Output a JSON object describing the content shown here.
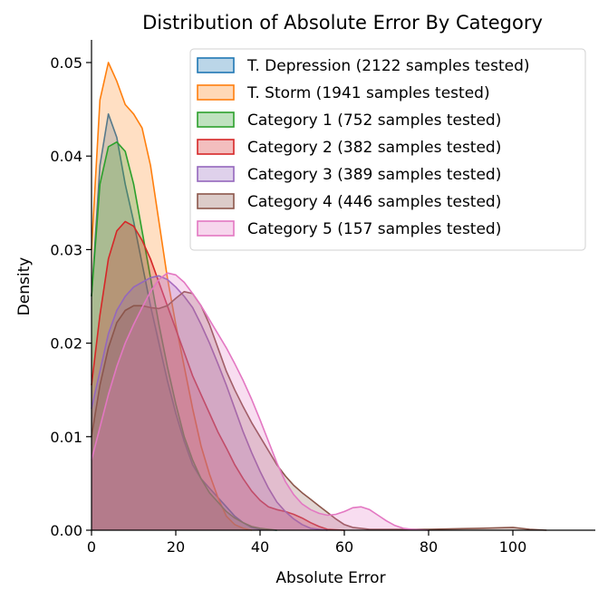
{
  "chart_data": {
    "type": "area",
    "title": "Distribution of Absolute Error By Category",
    "xlabel": "Absolute Error",
    "ylabel": "Density",
    "xlim": [
      0,
      120
    ],
    "ylim": [
      0,
      0.0525
    ],
    "xticks": [
      0,
      20,
      40,
      60,
      80,
      100
    ],
    "yticks": [
      0.0,
      0.01,
      0.02,
      0.03,
      0.04,
      0.05
    ],
    "xtick_labels": [
      "0",
      "20",
      "40",
      "60",
      "80",
      "100"
    ],
    "ytick_labels": [
      "0.00",
      "0.01",
      "0.02",
      "0.03",
      "0.04",
      "0.05"
    ],
    "legend_position": "top-right",
    "grid": false,
    "series": [
      {
        "name": "T. Depression (2122 samples tested)",
        "color": "#1f77b4",
        "points": [
          [
            0,
            0.025
          ],
          [
            2,
            0.039
          ],
          [
            4,
            0.0445
          ],
          [
            6,
            0.042
          ],
          [
            8,
            0.037
          ],
          [
            10,
            0.033
          ],
          [
            12,
            0.0285
          ],
          [
            14,
            0.024
          ],
          [
            16,
            0.02
          ],
          [
            18,
            0.016
          ],
          [
            20,
            0.0125
          ],
          [
            22,
            0.0095
          ],
          [
            24,
            0.007
          ],
          [
            26,
            0.0055
          ],
          [
            28,
            0.0045
          ],
          [
            30,
            0.0035
          ],
          [
            32,
            0.0025
          ],
          [
            34,
            0.0015
          ],
          [
            36,
            0.0008
          ],
          [
            38,
            0.0003
          ],
          [
            40,
            0.0001
          ],
          [
            44,
            0
          ]
        ]
      },
      {
        "name": "T. Storm (1941 samples tested)",
        "color": "#ff7f0e",
        "points": [
          [
            0,
            0.03
          ],
          [
            2,
            0.046
          ],
          [
            4,
            0.05
          ],
          [
            6,
            0.048
          ],
          [
            8,
            0.0455
          ],
          [
            10,
            0.0445
          ],
          [
            12,
            0.043
          ],
          [
            14,
            0.039
          ],
          [
            16,
            0.033
          ],
          [
            18,
            0.027
          ],
          [
            20,
            0.022
          ],
          [
            22,
            0.0175
          ],
          [
            24,
            0.013
          ],
          [
            26,
            0.009
          ],
          [
            28,
            0.006
          ],
          [
            30,
            0.0035
          ],
          [
            32,
            0.0015
          ],
          [
            34,
            0.0006
          ],
          [
            36,
            0.0002
          ],
          [
            38,
            0
          ]
        ]
      },
      {
        "name": "Category 1 (752 samples tested)",
        "color": "#2ca02c",
        "points": [
          [
            0,
            0.025
          ],
          [
            2,
            0.037
          ],
          [
            4,
            0.041
          ],
          [
            6,
            0.0415
          ],
          [
            8,
            0.0405
          ],
          [
            10,
            0.037
          ],
          [
            12,
            0.032
          ],
          [
            14,
            0.027
          ],
          [
            16,
            0.022
          ],
          [
            18,
            0.0175
          ],
          [
            20,
            0.0135
          ],
          [
            22,
            0.01
          ],
          [
            24,
            0.0075
          ],
          [
            26,
            0.0055
          ],
          [
            28,
            0.004
          ],
          [
            30,
            0.003
          ],
          [
            32,
            0.002
          ],
          [
            34,
            0.0013
          ],
          [
            36,
            0.0008
          ],
          [
            38,
            0.0004
          ],
          [
            40,
            0.0002
          ],
          [
            44,
            0
          ]
        ]
      },
      {
        "name": "Category 2 (382 samples tested)",
        "color": "#d62728",
        "points": [
          [
            0,
            0.0155
          ],
          [
            2,
            0.023
          ],
          [
            4,
            0.029
          ],
          [
            6,
            0.032
          ],
          [
            8,
            0.033
          ],
          [
            10,
            0.0325
          ],
          [
            12,
            0.031
          ],
          [
            14,
            0.029
          ],
          [
            16,
            0.0265
          ],
          [
            18,
            0.024
          ],
          [
            20,
            0.0215
          ],
          [
            22,
            0.019
          ],
          [
            24,
            0.0165
          ],
          [
            26,
            0.0145
          ],
          [
            28,
            0.0125
          ],
          [
            30,
            0.0105
          ],
          [
            32,
            0.0088
          ],
          [
            34,
            0.007
          ],
          [
            36,
            0.0055
          ],
          [
            38,
            0.0042
          ],
          [
            40,
            0.0032
          ],
          [
            42,
            0.0025
          ],
          [
            44,
            0.0022
          ],
          [
            46,
            0.002
          ],
          [
            48,
            0.0017
          ],
          [
            50,
            0.0013
          ],
          [
            52,
            0.0008
          ],
          [
            54,
            0.0004
          ],
          [
            56,
            0.0001
          ],
          [
            60,
            0
          ]
        ]
      },
      {
        "name": "Category 3 (389 samples tested)",
        "color": "#9467bd",
        "points": [
          [
            0,
            0.013
          ],
          [
            2,
            0.017
          ],
          [
            4,
            0.021
          ],
          [
            6,
            0.0235
          ],
          [
            8,
            0.025
          ],
          [
            10,
            0.026
          ],
          [
            12,
            0.0265
          ],
          [
            14,
            0.027
          ],
          [
            16,
            0.0272
          ],
          [
            18,
            0.0268
          ],
          [
            20,
            0.026
          ],
          [
            22,
            0.025
          ],
          [
            24,
            0.0238
          ],
          [
            26,
            0.022
          ],
          [
            28,
            0.02
          ],
          [
            30,
            0.0178
          ],
          [
            32,
            0.0155
          ],
          [
            34,
            0.013
          ],
          [
            36,
            0.0105
          ],
          [
            38,
            0.0083
          ],
          [
            40,
            0.0063
          ],
          [
            42,
            0.0045
          ],
          [
            44,
            0.003
          ],
          [
            46,
            0.002
          ],
          [
            48,
            0.0012
          ],
          [
            50,
            0.0006
          ],
          [
            52,
            0.0002
          ],
          [
            56,
            0
          ]
        ]
      },
      {
        "name": "Category 4 (446 samples tested)",
        "color": "#8c564b",
        "points": [
          [
            0,
            0.01
          ],
          [
            2,
            0.0155
          ],
          [
            4,
            0.0195
          ],
          [
            6,
            0.0222
          ],
          [
            8,
            0.0235
          ],
          [
            10,
            0.024
          ],
          [
            12,
            0.024
          ],
          [
            14,
            0.0238
          ],
          [
            16,
            0.0237
          ],
          [
            18,
            0.024
          ],
          [
            20,
            0.0248
          ],
          [
            22,
            0.0255
          ],
          [
            24,
            0.0253
          ],
          [
            26,
            0.024
          ],
          [
            28,
            0.022
          ],
          [
            30,
            0.0195
          ],
          [
            32,
            0.017
          ],
          [
            34,
            0.015
          ],
          [
            36,
            0.0132
          ],
          [
            38,
            0.0115
          ],
          [
            40,
            0.01
          ],
          [
            42,
            0.0085
          ],
          [
            44,
            0.007
          ],
          [
            46,
            0.0058
          ],
          [
            48,
            0.0048
          ],
          [
            50,
            0.004
          ],
          [
            52,
            0.0033
          ],
          [
            54,
            0.0026
          ],
          [
            56,
            0.0019
          ],
          [
            58,
            0.0012
          ],
          [
            60,
            0.0006
          ],
          [
            62,
            0.0003
          ],
          [
            66,
            0.0001
          ],
          [
            80,
            0.0001
          ],
          [
            92,
            0.0002
          ],
          [
            100,
            0.0003
          ],
          [
            104,
            0.0001
          ],
          [
            108,
            0
          ]
        ]
      },
      {
        "name": "Category 5 (157 samples tested)",
        "color": "#e377c2",
        "points": [
          [
            0,
            0.0075
          ],
          [
            2,
            0.011
          ],
          [
            4,
            0.0145
          ],
          [
            6,
            0.0175
          ],
          [
            8,
            0.02
          ],
          [
            10,
            0.022
          ],
          [
            12,
            0.0238
          ],
          [
            14,
            0.0255
          ],
          [
            16,
            0.0268
          ],
          [
            18,
            0.0275
          ],
          [
            20,
            0.0273
          ],
          [
            22,
            0.0265
          ],
          [
            24,
            0.0253
          ],
          [
            26,
            0.024
          ],
          [
            28,
            0.0225
          ],
          [
            30,
            0.021
          ],
          [
            32,
            0.0195
          ],
          [
            34,
            0.0178
          ],
          [
            36,
            0.016
          ],
          [
            38,
            0.014
          ],
          [
            40,
            0.0118
          ],
          [
            42,
            0.0095
          ],
          [
            44,
            0.0072
          ],
          [
            46,
            0.0052
          ],
          [
            48,
            0.0038
          ],
          [
            50,
            0.0028
          ],
          [
            52,
            0.0022
          ],
          [
            54,
            0.0018
          ],
          [
            56,
            0.0016
          ],
          [
            58,
            0.0017
          ],
          [
            60,
            0.002
          ],
          [
            62,
            0.0024
          ],
          [
            64,
            0.0025
          ],
          [
            66,
            0.0022
          ],
          [
            68,
            0.0016
          ],
          [
            70,
            0.001
          ],
          [
            72,
            0.0005
          ],
          [
            74,
            0.0002
          ],
          [
            76,
            0.0001
          ],
          [
            80,
            0
          ]
        ]
      }
    ]
  }
}
